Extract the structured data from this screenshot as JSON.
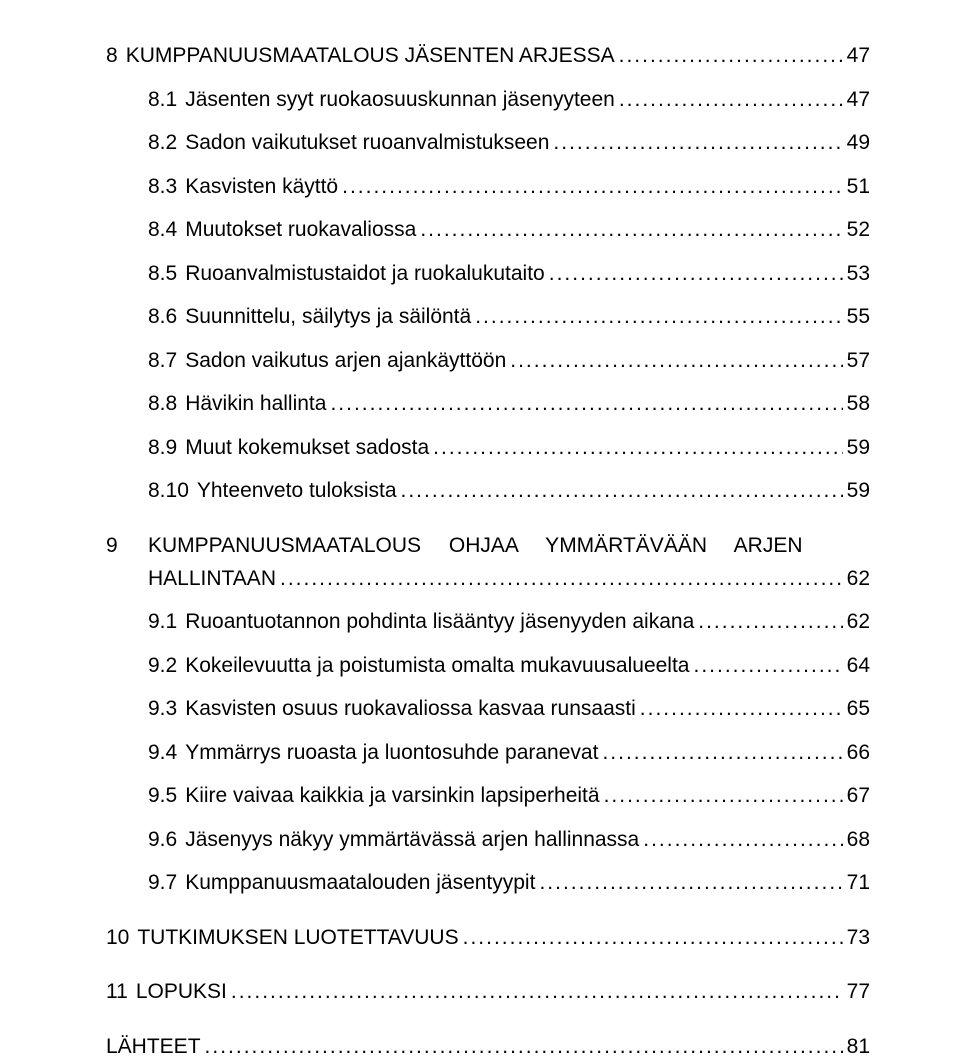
{
  "sections": [
    {
      "num": "8",
      "label": "KUMPPANUUSMAATALOUS JÄSENTEN ARJESSA",
      "page": "47",
      "subs": [
        {
          "num": "8.1",
          "label": "Jäsenten syyt ruokaosuuskunnan jäsenyyteen",
          "page": "47"
        },
        {
          "num": "8.2",
          "label": "Sadon vaikutukset ruoanvalmistukseen",
          "page": "49"
        },
        {
          "num": "8.3",
          "label": "Kasvisten käyttö",
          "page": "51"
        },
        {
          "num": "8.4",
          "label": "Muutokset ruokavaliossa",
          "page": "52"
        },
        {
          "num": "8.5",
          "label": "Ruoanvalmistustaidot ja ruokalukutaito",
          "page": "53"
        },
        {
          "num": "8.6",
          "label": "Suunnittelu, säilytys ja säilöntä",
          "page": "55"
        },
        {
          "num": "8.7",
          "label": "Sadon vaikutus arjen ajankäyttöön",
          "page": "57"
        },
        {
          "num": "8.8",
          "label": "Hävikin hallinta",
          "page": "58"
        },
        {
          "num": "8.9",
          "label": "Muut kokemukset sadosta",
          "page": "59"
        },
        {
          "num": "8.10",
          "label": "Yhteenveto tuloksista",
          "page": "59"
        }
      ]
    },
    {
      "num": "9",
      "label_line1_words": [
        "KUMPPANUUSMAATALOUS",
        "OHJAA",
        "YMMÄRTÄVÄÄN",
        "ARJEN"
      ],
      "label_line2": "HALLINTAAN",
      "page": "62",
      "multiline": true,
      "subs": [
        {
          "num": "9.1",
          "label": "Ruoantuotannon pohdinta lisääntyy jäsenyyden aikana",
          "page": "62"
        },
        {
          "num": "9.2",
          "label": "Kokeilevuutta ja poistumista omalta mukavuusalueelta",
          "page": "64"
        },
        {
          "num": "9.3",
          "label": "Kasvisten osuus ruokavaliossa kasvaa runsaasti",
          "page": "65"
        },
        {
          "num": "9.4",
          "label": "Ymmärrys ruoasta ja luontosuhde paranevat",
          "page": "66"
        },
        {
          "num": "9.5",
          "label": "Kiire vaivaa kaikkia ja varsinkin lapsiperheitä",
          "page": "67"
        },
        {
          "num": "9.6",
          "label": "Jäsenyys näkyy ymmärtävässä arjen hallinnassa",
          "page": "68"
        },
        {
          "num": "9.7",
          "label": "Kumppanuusmaatalouden jäsentyypit",
          "page": "71"
        }
      ]
    },
    {
      "num": "10",
      "label": "TUTKIMUKSEN LUOTETTAVUUS",
      "page": "73",
      "subs": []
    },
    {
      "num": "11",
      "label": "LOPUKSI",
      "page": "77",
      "subs": []
    }
  ],
  "trailing": {
    "label": "LÄHTEET",
    "page": "81"
  }
}
